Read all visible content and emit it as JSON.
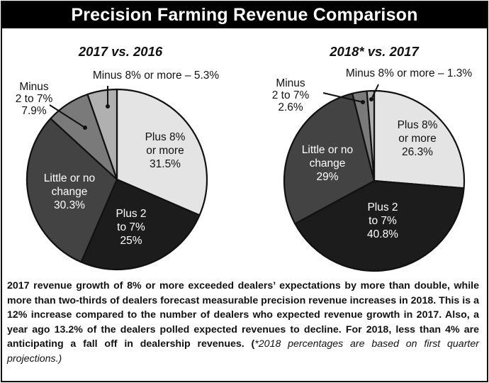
{
  "title": "Precision Farming Revenue Comparison",
  "caption": {
    "main": "2017 revenue growth of 8% or more exceeded dealers’ expectations by more than double, while more than two-thirds of dealers forecast measurable precision revenue increases in 2018. This is a 12% increase compared to the number of dealers who expected revenue growth in 2017. Also, a year ago 13.2% of the dealers polled expected revenues to decline. For 2018, less than 4% are anticipating a fall off in dealership revenues. (",
    "note": "*2018 percentages are based on first quarter projections.)"
  },
  "colors": {
    "plus8": "#e4e4e4",
    "plus2to7": "#1c1c1c",
    "little": "#434343",
    "minus2to7": "#7a7a7a",
    "minus8": "#b0b0b0",
    "outline": "#111111"
  },
  "chart_data": [
    {
      "type": "pie",
      "title": "2017 vs. 2016",
      "slices": [
        {
          "key": "plus8",
          "value": 31.5,
          "label": [
            "Plus 8%",
            "or more",
            "31.5%"
          ],
          "color": "#e4e4e4",
          "text_color": "#111111"
        },
        {
          "key": "plus2to7",
          "value": 25,
          "label": [
            "Plus 2",
            "to 7%",
            "25%"
          ],
          "color": "#1c1c1c",
          "text_color": "#ffffff"
        },
        {
          "key": "little",
          "value": 30.3,
          "label": [
            "Little or no",
            "change",
            "30.3%"
          ],
          "color": "#434343",
          "text_color": "#ffffff"
        },
        {
          "key": "minus2to7",
          "value": 7.9,
          "label": [
            "Minus",
            "2 to 7%",
            "7.9%"
          ],
          "color": "#7a7a7a",
          "text_color": "#111111"
        },
        {
          "key": "minus8",
          "value": 5.3,
          "label": [
            "Minus 8% or more – 5.3%"
          ],
          "color": "#b0b0b0",
          "text_color": "#111111"
        }
      ]
    },
    {
      "type": "pie",
      "title": "2018* vs. 2017",
      "slices": [
        {
          "key": "plus8",
          "value": 26.3,
          "label": [
            "Plus 8%",
            "or more",
            "26.3%"
          ],
          "color": "#e4e4e4",
          "text_color": "#111111"
        },
        {
          "key": "plus2to7",
          "value": 40.8,
          "label": [
            "Plus 2",
            "to 7%",
            "40.8%"
          ],
          "color": "#1c1c1c",
          "text_color": "#ffffff"
        },
        {
          "key": "little",
          "value": 29,
          "label": [
            "Little or no",
            "change",
            "29%"
          ],
          "color": "#434343",
          "text_color": "#ffffff"
        },
        {
          "key": "minus2to7",
          "value": 2.6,
          "label": [
            "Minus",
            "2 to 7%",
            "2.6%"
          ],
          "color": "#7a7a7a",
          "text_color": "#111111"
        },
        {
          "key": "minus8",
          "value": 1.3,
          "label": [
            "Minus 8% or more – 1.3%"
          ],
          "color": "#b0b0b0",
          "text_color": "#111111"
        }
      ]
    }
  ]
}
